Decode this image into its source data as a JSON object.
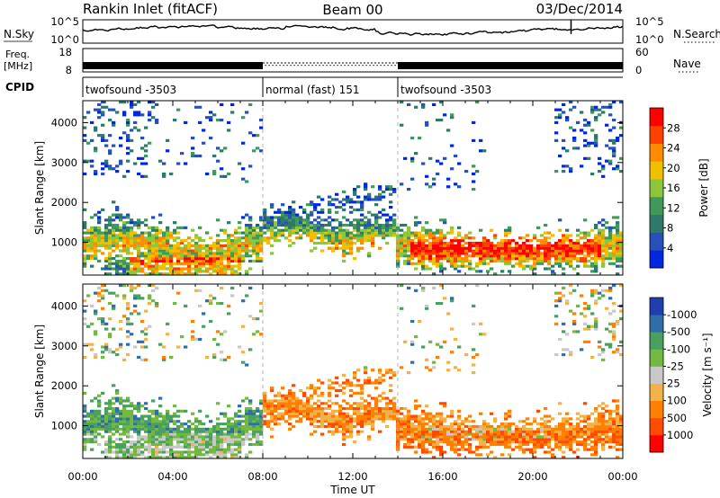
{
  "header": {
    "station": "Rankin Inlet (fitACF)",
    "beam": "Beam 00",
    "date": "03/Dec/2014"
  },
  "noise_panel": {
    "left_label": "N.Sky",
    "right_label": "N.Search",
    "left_ticks": [
      "10^5",
      "10^0"
    ],
    "right_ticks": [
      "10^5",
      "10^0"
    ]
  },
  "freq_panel": {
    "left_label_line1": "Freq.",
    "left_label_line2": "[MHz]",
    "left_ticks": [
      "18",
      "8"
    ],
    "right_label": "Nave",
    "right_ticks": [
      "60",
      "0"
    ]
  },
  "cpid_panel": {
    "label": "CPID",
    "segments": [
      {
        "start_hour": 0,
        "end_hour": 8,
        "text": "twofsound -3503"
      },
      {
        "start_hour": 8,
        "end_hour": 14,
        "text": "normal (fast) 151"
      },
      {
        "start_hour": 14,
        "end_hour": 24,
        "text": "twofsound -3503"
      }
    ]
  },
  "colors": {
    "power": [
      "#0028e0",
      "#2850b8",
      "#2e7a6a",
      "#3f9a5a",
      "#8cc63c",
      "#f0c000",
      "#ff8c00",
      "#ff4000",
      "#ff0000"
    ],
    "velocity": [
      "#ff0000",
      "#ff4a00",
      "#ff8000",
      "#f2b24a",
      "#c8c8c8",
      "#73b840",
      "#4aa060",
      "#2f6ea8",
      "#1f3fb0"
    ]
  },
  "chart_data": [
    {
      "type": "heatmap",
      "name": "power",
      "x_axis": {
        "range_hours": [
          0,
          24
        ],
        "tick_hours": [
          0,
          4,
          8,
          12,
          16,
          20,
          24
        ],
        "tick_labels": [
          "00:00",
          "04:00",
          "08:00",
          "12:00",
          "16:00",
          "20:00",
          "00:00"
        ],
        "label": "Time UT"
      },
      "y_axis": {
        "label": "Slant Range [km]",
        "range_km": [
          180,
          4550
        ],
        "ticks": [
          1000,
          2000,
          3000,
          4000
        ]
      },
      "colorbar": {
        "label": "Power [dB]",
        "range": [
          0,
          32
        ],
        "ticks": [
          4,
          8,
          12,
          16,
          20,
          24,
          28
        ]
      }
    },
    {
      "type": "heatmap",
      "name": "velocity",
      "x_axis": {
        "range_hours": [
          0,
          24
        ],
        "tick_hours": [
          0,
          4,
          8,
          12,
          16,
          20,
          24
        ],
        "tick_labels": [
          "00:00",
          "04:00",
          "08:00",
          "12:00",
          "16:00",
          "20:00",
          "00:00"
        ],
        "label": "Time UT"
      },
      "y_axis": {
        "label": "Slant Range [km]",
        "range_km": [
          180,
          4550
        ],
        "ticks": [
          1000,
          2000,
          3000,
          4000
        ]
      },
      "colorbar": {
        "label": "Velocity [m s⁻¹]",
        "ticks": [
          "-1000",
          "-500",
          "-100",
          "-25",
          "25",
          "100",
          "500",
          "1000"
        ]
      }
    }
  ]
}
